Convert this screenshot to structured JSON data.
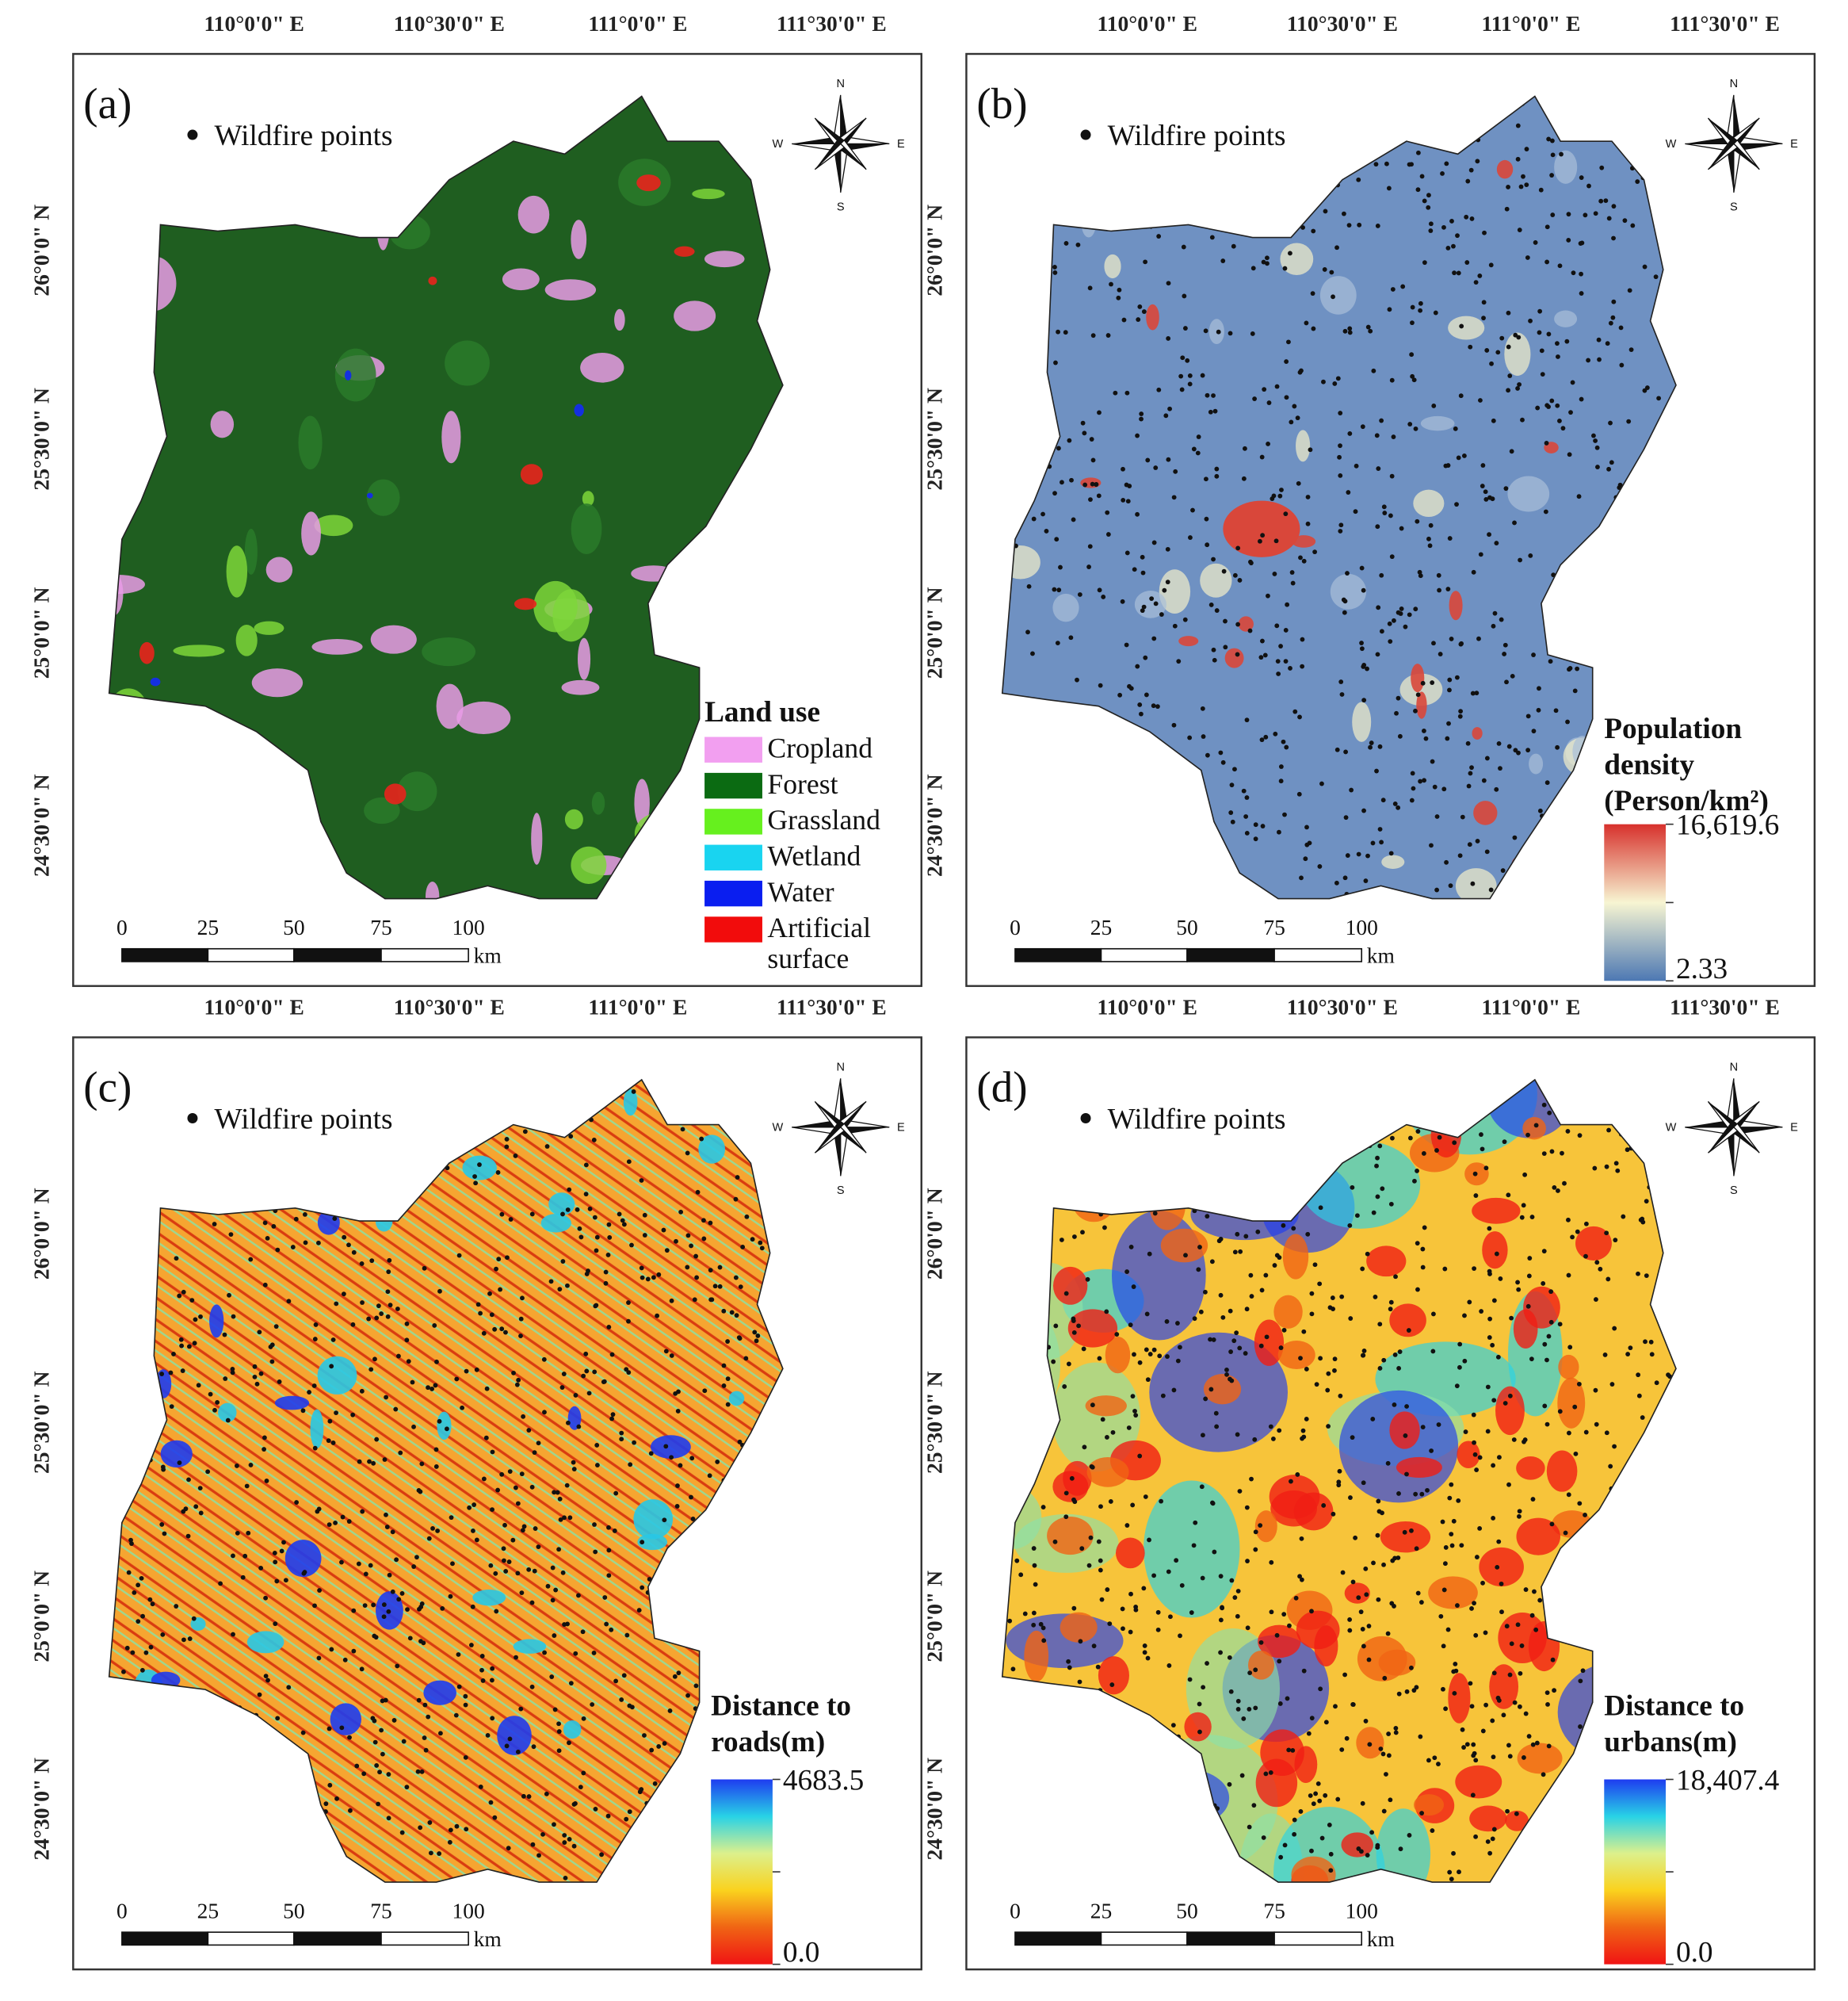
{
  "figure": {
    "panels": [
      {
        "label": "(a)",
        "points_label": "Wildfire points",
        "x_ticks": [
          "110°0'0\" E",
          "110°30'0\" E",
          "111°0'0\" E",
          "111°30'0\" E"
        ],
        "y_ticks": [
          "26°0'0\" N",
          "25°30'0\" N",
          "25°0'0\" N",
          "24°30'0\" N"
        ],
        "compass": [
          "N",
          "S",
          "E",
          "W"
        ],
        "scale": {
          "labels": [
            "0",
            "25",
            "50",
            "75",
            "100"
          ],
          "unit": "km"
        },
        "legend": {
          "title": "Land use",
          "items": [
            {
              "label": "Cropland",
              "color": "#f29ff0"
            },
            {
              "label": "Forest",
              "color": "#0b6b12"
            },
            {
              "label": "Grassland",
              "color": "#66f01e"
            },
            {
              "label": "Wetland",
              "color": "#19d4f0"
            },
            {
              "label": "Water",
              "color": "#0a1ef0"
            },
            {
              "label": "Artificial surface",
              "color": "#f20c0c"
            }
          ]
        }
      },
      {
        "label": "(b)",
        "points_label": "Wildfire points",
        "x_ticks": [
          "110°0'0\" E",
          "110°30'0\" E",
          "111°0'0\" E",
          "111°30'0\" E"
        ],
        "y_ticks": [
          "26°0'0\" N",
          "25°30'0\" N",
          "25°0'0\" N",
          "24°30'0\" N"
        ],
        "compass": [
          "N",
          "S",
          "E",
          "W"
        ],
        "scale": {
          "labels": [
            "0",
            "25",
            "50",
            "75",
            "100"
          ],
          "unit": "km"
        },
        "colorbar": {
          "title_lines": [
            "Population",
            "density",
            "(Person/km²)"
          ],
          "max": {
            "value": 16619.6,
            "label": "16,619.6"
          },
          "min": 2.33,
          "colors": [
            "#d7302c",
            "#f7f5d2",
            "#4d78b3"
          ]
        }
      },
      {
        "label": "(c)",
        "points_label": "Wildfire points",
        "x_ticks": [
          "110°0'0\" E",
          "110°30'0\" E",
          "111°0'0\" E",
          "111°30'0\" E"
        ],
        "y_ticks": [
          "26°0'0\" N",
          "25°30'0\" N",
          "25°0'0\" N",
          "24°30'0\" N"
        ],
        "compass": [
          "N",
          "S",
          "E",
          "W"
        ],
        "scale": {
          "labels": [
            "0",
            "25",
            "50",
            "75",
            "100"
          ],
          "unit": "km"
        },
        "colorbar": {
          "title_lines": [
            "Distance to",
            "roads(m)"
          ],
          "max": 4683.5,
          "min": {
            "value": 0,
            "label": "0.0"
          },
          "colors": [
            "#1e3cf0",
            "#28d2e6",
            "#dcf08c",
            "#fad21e",
            "#f06414",
            "#f01414"
          ]
        }
      },
      {
        "label": "(d)",
        "points_label": "Wildfire points",
        "x_ticks": [
          "110°0'0\" E",
          "110°30'0\" E",
          "111°0'0\" E",
          "111°30'0\" E"
        ],
        "y_ticks": [
          "26°0'0\" N",
          "25°30'0\" N",
          "25°0'0\" N",
          "24°30'0\" N"
        ],
        "compass": [
          "N",
          "S",
          "E",
          "W"
        ],
        "scale": {
          "labels": [
            "0",
            "25",
            "50",
            "75",
            "100"
          ],
          "unit": "km"
        },
        "colorbar": {
          "title_lines": [
            "Distance to",
            "urbans(m)"
          ],
          "max": {
            "value": 18407.4,
            "label": "18,407.4"
          },
          "min": {
            "value": 0,
            "label": "0.0"
          },
          "colors": [
            "#1e3cf0",
            "#28d2e6",
            "#dcf08c",
            "#fad21e",
            "#f06414",
            "#f01414"
          ]
        }
      }
    ]
  }
}
